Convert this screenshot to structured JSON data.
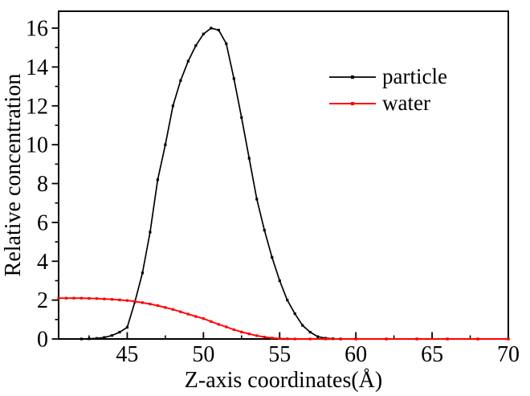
{
  "background": "#ffffff",
  "chart_data": {
    "type": "line",
    "title": "",
    "xlabel": "Z-axis coordinates(Å)",
    "ylabel": "Relative concentration",
    "xlim": [
      40.5,
      70
    ],
    "ylim": [
      0,
      16.87
    ],
    "grid": false,
    "axis_color": "#000000",
    "x_major_ticks": [
      45,
      50,
      55,
      60,
      65,
      70
    ],
    "x_minor_ticks": [
      42.5,
      47.5,
      52.5,
      57.5,
      62.5,
      67.5
    ],
    "y_major_ticks": [
      0,
      2,
      4,
      6,
      8,
      10,
      12,
      14,
      16
    ],
    "y_minor_ticks": [
      1,
      3,
      5,
      7,
      9,
      11,
      13,
      15
    ],
    "legend": {
      "position": "upper-right-inside",
      "border": false
    },
    "series": [
      {
        "name": "particle",
        "color": "#000000",
        "marker": "square",
        "x": [
          42,
          42.5,
          43,
          43.5,
          44,
          44.5,
          45,
          45.5,
          46,
          46.5,
          47,
          47.5,
          48,
          48.5,
          49,
          49.5,
          50,
          50.5,
          51,
          51.5,
          52,
          52.5,
          53,
          53.5,
          54,
          54.5,
          55,
          55.5,
          56,
          56.5,
          57,
          57.5,
          58,
          58.5,
          59,
          60,
          62,
          64,
          66,
          68,
          70
        ],
        "y": [
          0,
          0.01,
          0.03,
          0.08,
          0.18,
          0.35,
          0.6,
          1.9,
          3.4,
          5.5,
          8.2,
          10.0,
          12.0,
          13.3,
          14.3,
          15.1,
          15.7,
          16.0,
          15.9,
          15.2,
          13.4,
          11.4,
          9.3,
          7.2,
          5.6,
          4.2,
          3.0,
          2.0,
          1.3,
          0.7,
          0.35,
          0.12,
          0.04,
          0.01,
          0,
          0,
          0,
          0,
          0,
          0,
          0
        ]
      },
      {
        "name": "water",
        "color": "#ff0000",
        "marker": "square",
        "x": [
          40.5,
          41,
          41.5,
          42,
          42.5,
          43,
          43.5,
          44,
          44.5,
          45,
          45.5,
          46,
          46.5,
          47,
          47.5,
          48,
          48.5,
          49,
          49.5,
          50,
          50.5,
          51,
          51.5,
          52,
          52.5,
          53,
          53.5,
          54,
          54.5,
          55,
          55.5,
          56,
          57,
          58,
          60,
          62,
          64,
          66,
          68,
          70
        ],
        "y": [
          2.1,
          2.1,
          2.1,
          2.1,
          2.09,
          2.08,
          2.06,
          2.04,
          2.01,
          1.98,
          1.93,
          1.87,
          1.8,
          1.72,
          1.62,
          1.52,
          1.4,
          1.28,
          1.16,
          1.05,
          0.9,
          0.75,
          0.62,
          0.48,
          0.36,
          0.26,
          0.17,
          0.1,
          0.05,
          0.02,
          0.01,
          0,
          0,
          0,
          0,
          0,
          0,
          0,
          0,
          0
        ]
      }
    ]
  }
}
